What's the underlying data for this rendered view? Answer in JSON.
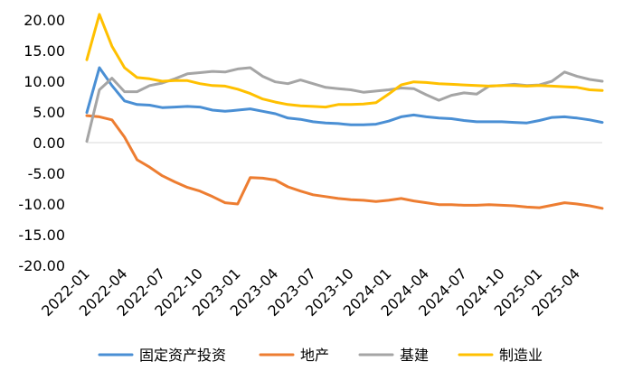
{
  "chart_data": {
    "type": "line",
    "ylim": [
      -20,
      20
    ],
    "yticks": [
      "20.00",
      "15.00",
      "10.00",
      "5.00",
      "0.00",
      "-5.00",
      "-10.00",
      "-15.00",
      "-20.00"
    ],
    "ytick_values": [
      20,
      15,
      10,
      5,
      0,
      -5,
      -10,
      -15,
      -20
    ],
    "x": [
      "2022-01",
      "2022-02",
      "2022-03",
      "2022-04",
      "2022-05",
      "2022-06",
      "2022-07",
      "2022-08",
      "2022-09",
      "2022-10",
      "2022-11",
      "2022-12",
      "2023-01",
      "2023-02",
      "2023-03",
      "2023-04",
      "2023-05",
      "2023-06",
      "2023-07",
      "2023-08",
      "2023-09",
      "2023-10",
      "2023-11",
      "2023-12",
      "2024-01",
      "2024-02",
      "2024-03",
      "2024-04",
      "2024-05",
      "2024-06",
      "2024-07",
      "2024-08",
      "2024-09",
      "2024-10",
      "2024-11",
      "2024-12",
      "2025-01",
      "2025-02",
      "2025-03",
      "2025-04",
      "2025-05",
      "2025-06"
    ],
    "xtick_labels": [
      "2022-01",
      "2022-04",
      "2022-07",
      "2022-10",
      "2023-01",
      "2023-04",
      "2023-07",
      "2023-10",
      "2024-01",
      "2024-04",
      "2024-07",
      "2024-10",
      "2025-01",
      "2025-04"
    ],
    "grid": false,
    "legend_position": "bottom",
    "series": [
      {
        "name": "固定资产投资",
        "color": "#4a8fd4",
        "values": [
          4.9,
          12.2,
          9.3,
          6.8,
          6.2,
          6.1,
          5.7,
          5.8,
          5.9,
          5.8,
          5.3,
          5.1,
          5.3,
          5.5,
          5.1,
          4.7,
          4.0,
          3.8,
          3.4,
          3.2,
          3.1,
          2.9,
          2.9,
          3.0,
          3.5,
          4.2,
          4.5,
          4.2,
          4.0,
          3.9,
          3.6,
          3.4,
          3.4,
          3.4,
          3.3,
          3.2,
          3.6,
          4.1,
          4.2,
          4.0,
          3.7,
          3.3
        ]
      },
      {
        "name": "地产",
        "color": "#ed7d31",
        "values": [
          4.4,
          4.2,
          3.7,
          0.9,
          -2.8,
          -4.0,
          -5.4,
          -6.4,
          -7.3,
          -7.9,
          -8.8,
          -9.8,
          -10.0,
          -5.7,
          -5.8,
          -6.1,
          -7.2,
          -7.9,
          -8.5,
          -8.8,
          -9.1,
          -9.3,
          -9.4,
          -9.6,
          -9.4,
          -9.1,
          -9.5,
          -9.8,
          -10.1,
          -10.1,
          -10.2,
          -10.2,
          -10.1,
          -10.2,
          -10.3,
          -10.5,
          -10.6,
          -10.2,
          -9.8,
          -10.0,
          -10.3,
          -10.7
        ]
      },
      {
        "name": "基建",
        "color": "#a5a5a5",
        "values": [
          0.2,
          8.6,
          10.5,
          8.3,
          8.3,
          9.3,
          9.7,
          10.4,
          11.2,
          11.4,
          11.6,
          11.5,
          12.0,
          12.2,
          10.8,
          9.9,
          9.6,
          10.2,
          9.6,
          9.0,
          8.8,
          8.6,
          8.2,
          8.4,
          8.6,
          8.9,
          8.8,
          7.8,
          6.9,
          7.7,
          8.1,
          7.9,
          9.2,
          9.3,
          9.5,
          9.3,
          9.4,
          10.0,
          11.5,
          10.8,
          10.3,
          10.0
        ]
      },
      {
        "name": "制造业",
        "color": "#ffc000",
        "values": [
          13.5,
          20.9,
          15.7,
          12.2,
          10.6,
          10.4,
          10.0,
          10.1,
          10.1,
          9.6,
          9.3,
          9.2,
          8.7,
          8.0,
          7.1,
          6.6,
          6.2,
          6.0,
          5.9,
          5.8,
          6.2,
          6.2,
          6.3,
          6.5,
          7.9,
          9.4,
          9.9,
          9.8,
          9.6,
          9.5,
          9.4,
          9.3,
          9.2,
          9.3,
          9.3,
          9.2,
          9.3,
          9.2,
          9.1,
          9.0,
          8.6,
          8.5
        ]
      }
    ]
  }
}
